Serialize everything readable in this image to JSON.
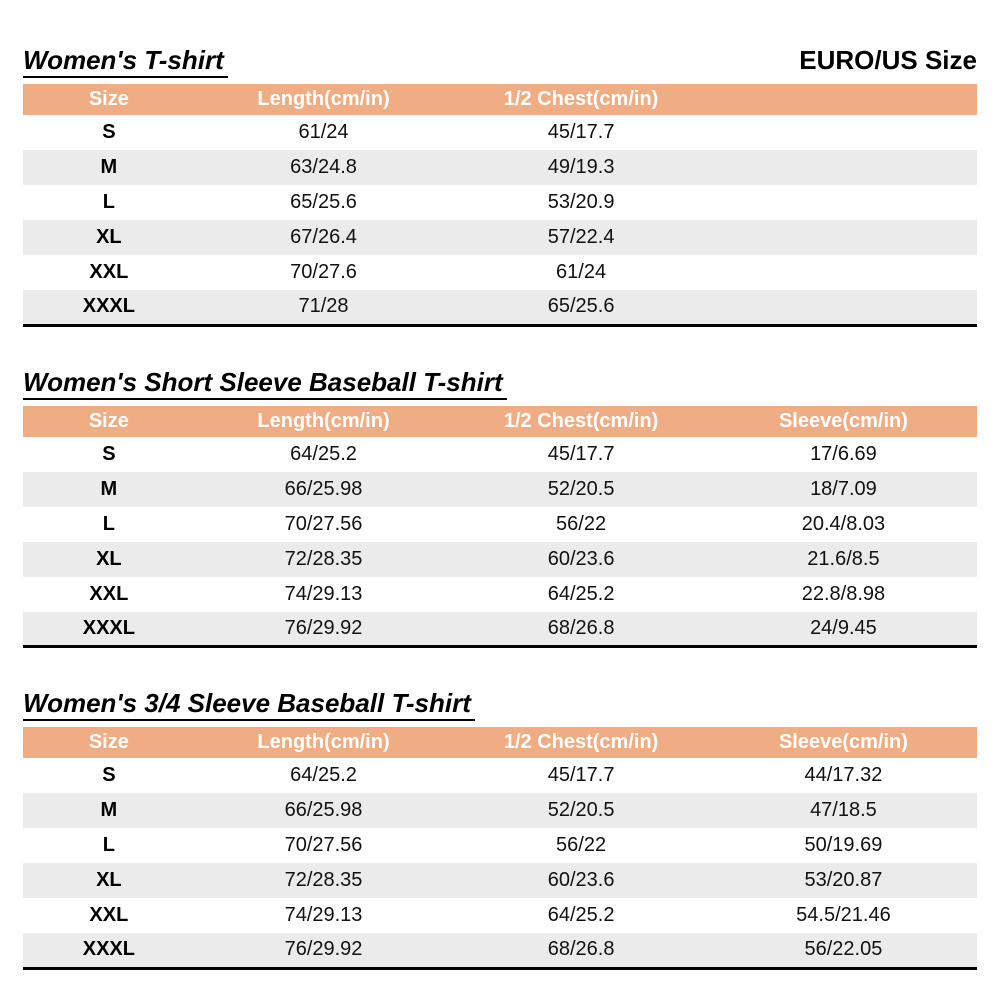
{
  "page": {
    "size_standard": "EURO/US Size"
  },
  "colors": {
    "header_bg": "#F0AC82",
    "row_stripe": "#EBEBEB",
    "header_text": "#FFFFFF",
    "ink": "#111111"
  },
  "tables": [
    {
      "title": "Women's T-shirt",
      "columns": [
        "Size",
        "Length(cm/in)",
        "1/2 Chest(cm/in)",
        ""
      ],
      "rows": [
        [
          "S",
          "61/24",
          "45/17.7",
          ""
        ],
        [
          "M",
          "63/24.8",
          "49/19.3",
          ""
        ],
        [
          "L",
          "65/25.6",
          "53/20.9",
          ""
        ],
        [
          "XL",
          "67/26.4",
          "57/22.4",
          ""
        ],
        [
          "XXL",
          "70/27.6",
          "61/24",
          ""
        ],
        [
          "XXXL",
          "71/28",
          "65/25.6",
          ""
        ]
      ]
    },
    {
      "title": "Women's Short Sleeve Baseball T-shirt",
      "columns": [
        "Size",
        "Length(cm/in)",
        "1/2 Chest(cm/in)",
        "Sleeve(cm/in)"
      ],
      "rows": [
        [
          "S",
          "64/25.2",
          "45/17.7",
          "17/6.69"
        ],
        [
          "M",
          "66/25.98",
          "52/20.5",
          "18/7.09"
        ],
        [
          "L",
          "70/27.56",
          "56/22",
          "20.4/8.03"
        ],
        [
          "XL",
          "72/28.35",
          "60/23.6",
          "21.6/8.5"
        ],
        [
          "XXL",
          "74/29.13",
          "64/25.2",
          "22.8/8.98"
        ],
        [
          "XXXL",
          "76/29.92",
          "68/26.8",
          "24/9.45"
        ]
      ]
    },
    {
      "title": "Women's 3/4 Sleeve Baseball T-shirt",
      "columns": [
        "Size",
        "Length(cm/in)",
        "1/2 Chest(cm/in)",
        "Sleeve(cm/in)"
      ],
      "rows": [
        [
          "S",
          "64/25.2",
          "45/17.7",
          "44/17.32"
        ],
        [
          "M",
          "66/25.98",
          "52/20.5",
          "47/18.5"
        ],
        [
          "L",
          "70/27.56",
          "56/22",
          "50/19.69"
        ],
        [
          "XL",
          "72/28.35",
          "60/23.6",
          "53/20.87"
        ],
        [
          "XXL",
          "74/29.13",
          "64/25.2",
          "54.5/21.46"
        ],
        [
          "XXXL",
          "76/29.92",
          "68/26.8",
          "56/22.05"
        ]
      ]
    }
  ]
}
